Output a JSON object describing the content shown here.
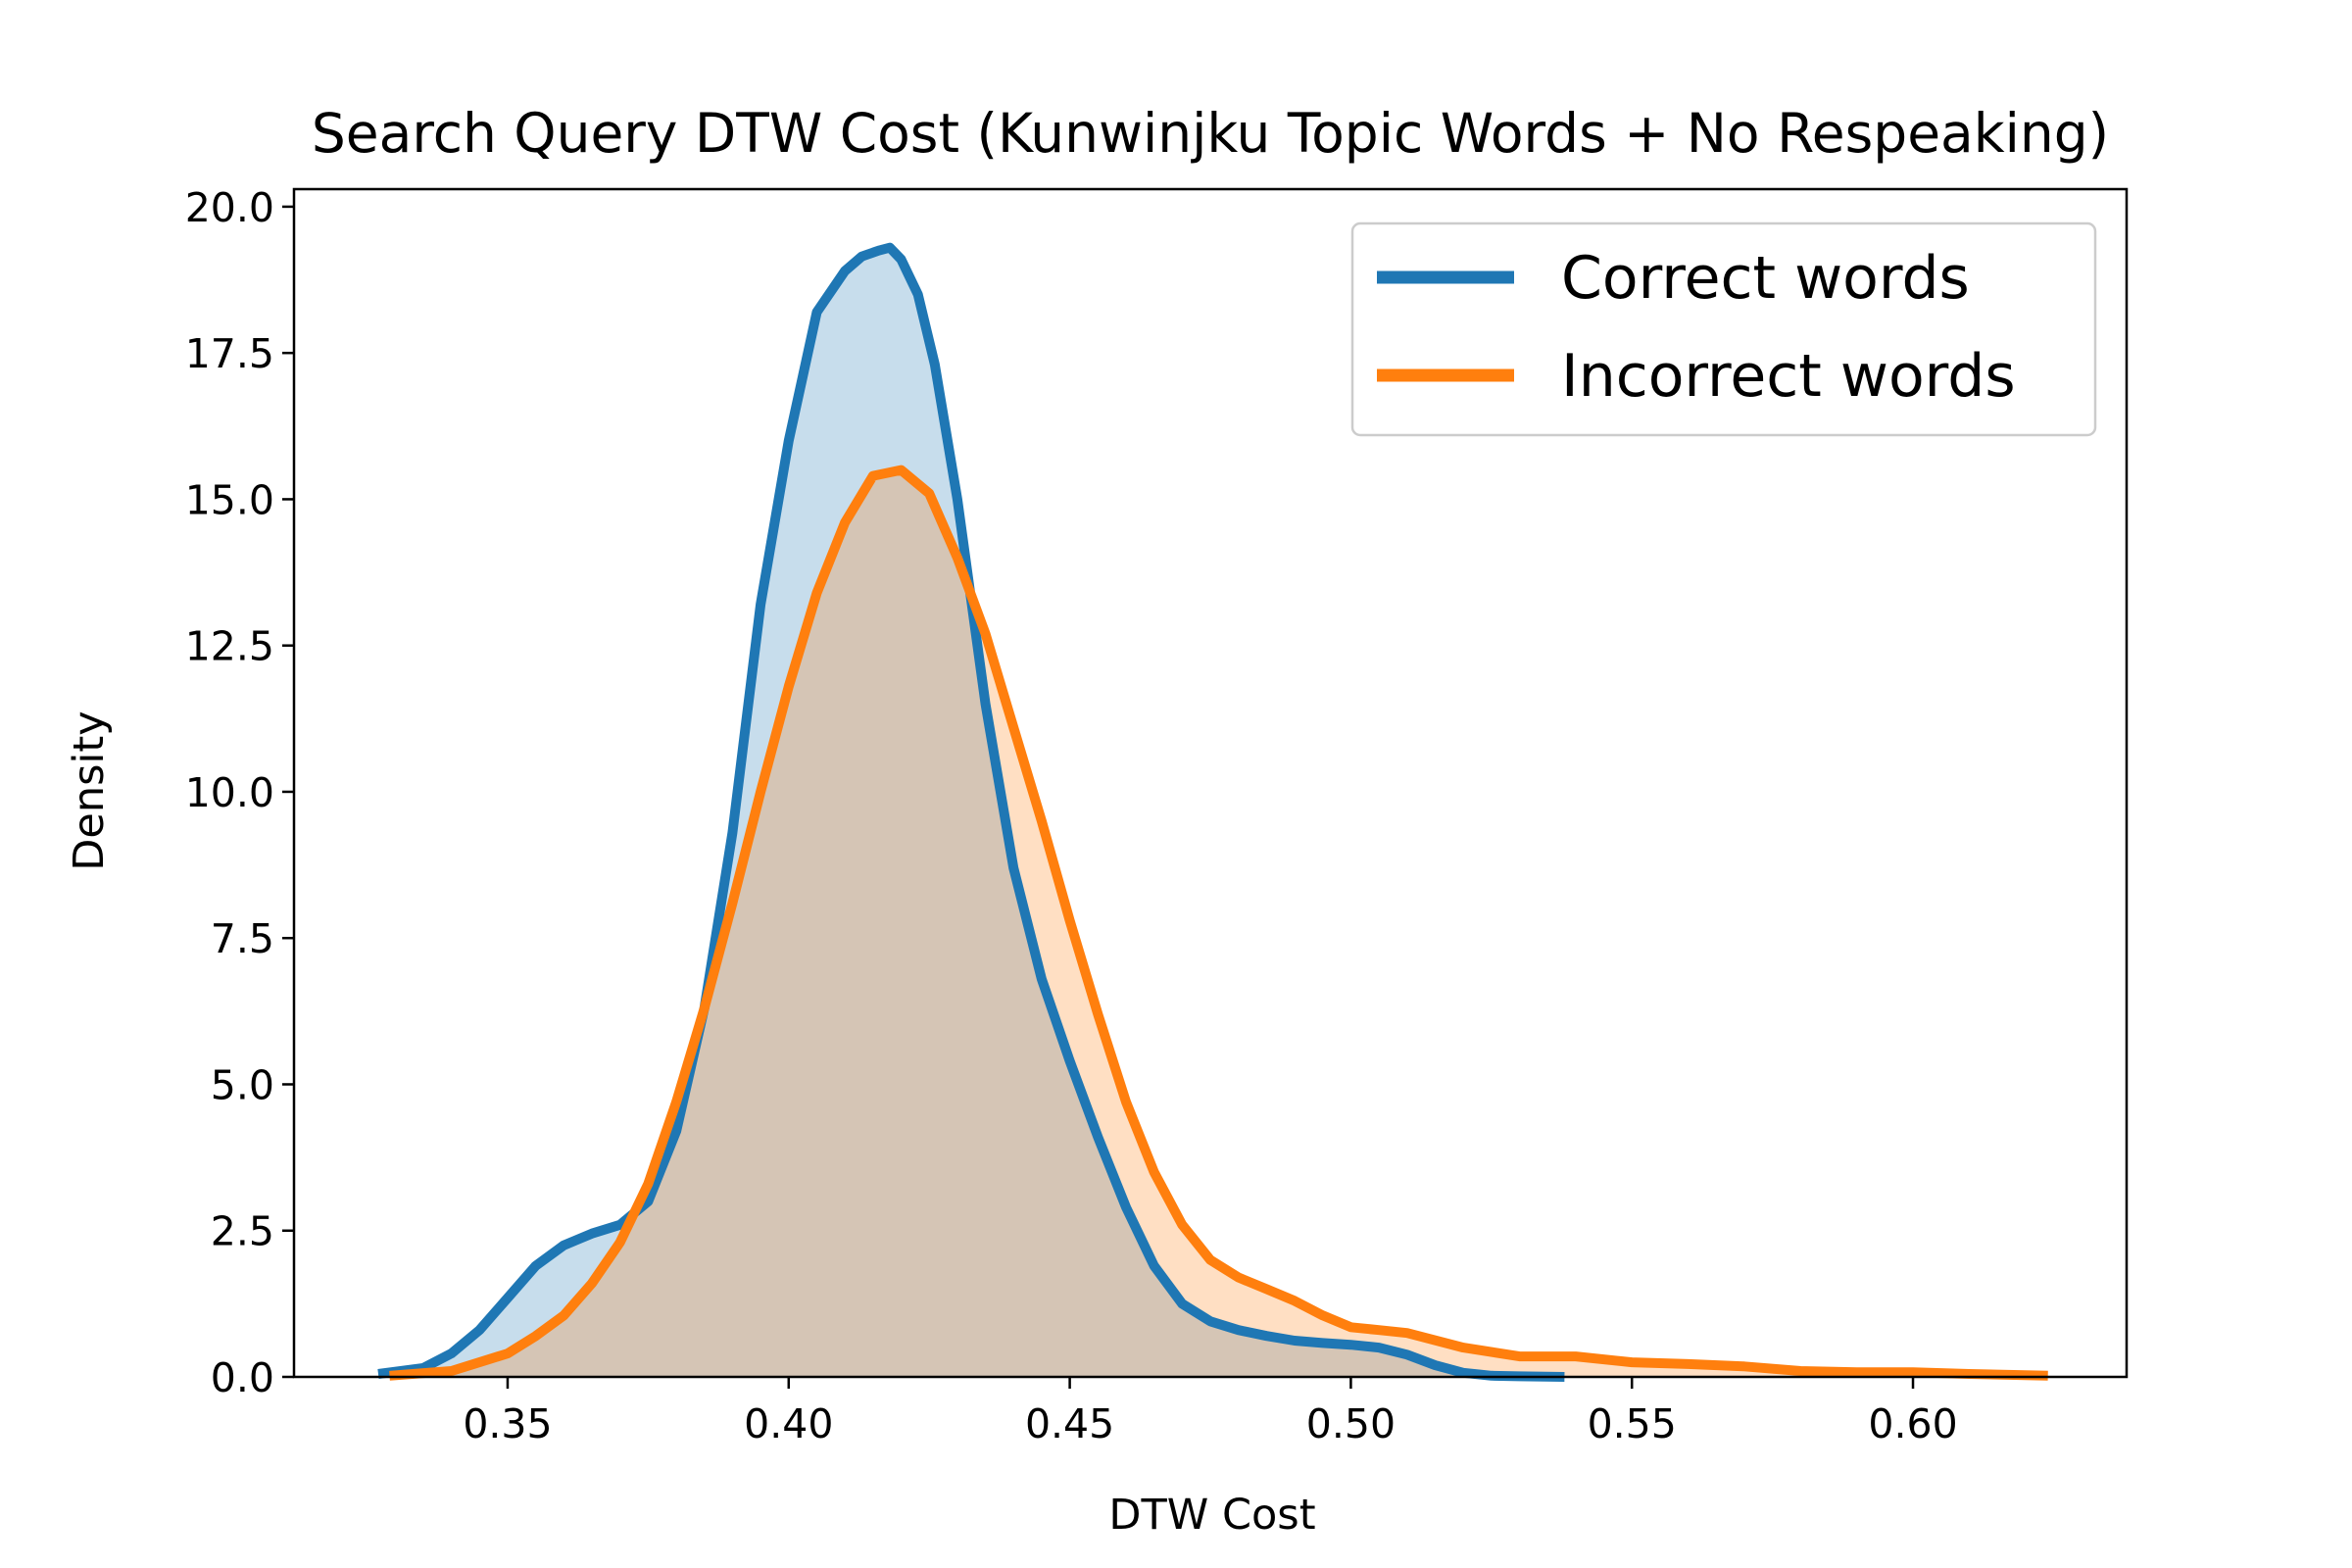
{
  "chart_data": {
    "type": "area",
    "title": "Search Query DTW Cost  (Kunwinjku Topic Words + No Respeaking)",
    "xlabel": "DTW Cost",
    "ylabel": "Density",
    "xlim": [
      0.312,
      0.638
    ],
    "ylim": [
      0,
      20.3
    ],
    "xticks": [
      0.35,
      0.4,
      0.45,
      0.5,
      0.55,
      0.6
    ],
    "xtick_labels": [
      "0.35",
      "0.40",
      "0.45",
      "0.50",
      "0.55",
      "0.60"
    ],
    "yticks": [
      0,
      2.5,
      5,
      7.5,
      10,
      12.5,
      15,
      17.5,
      20
    ],
    "ytick_labels": [
      "0.0",
      "2.5",
      "5.0",
      "7.5",
      "10.0",
      "12.5",
      "15.0",
      "17.5",
      "20.0"
    ],
    "grid": false,
    "legend_position": "top-right",
    "series": [
      {
        "name": "Correct words",
        "color": "#1f77b4",
        "fill": "#c5daed",
        "x": [
          0.327,
          0.335,
          0.34,
          0.345,
          0.35,
          0.355,
          0.36,
          0.365,
          0.37,
          0.375,
          0.38,
          0.385,
          0.39,
          0.395,
          0.4,
          0.405,
          0.41,
          0.413,
          0.416,
          0.418,
          0.42,
          0.423,
          0.426,
          0.43,
          0.435,
          0.44,
          0.445,
          0.45,
          0.455,
          0.46,
          0.465,
          0.47,
          0.475,
          0.48,
          0.485,
          0.49,
          0.495,
          0.5,
          0.505,
          0.51,
          0.515,
          0.52,
          0.525,
          0.53,
          0.538
        ],
        "values": [
          0.05,
          0.15,
          0.4,
          0.8,
          1.35,
          1.9,
          2.25,
          2.45,
          2.6,
          3.0,
          4.2,
          6.3,
          9.3,
          13.2,
          16.0,
          18.2,
          18.9,
          19.15,
          19.25,
          19.3,
          19.1,
          18.5,
          17.3,
          15.0,
          11.5,
          8.7,
          6.8,
          5.4,
          4.1,
          2.9,
          1.9,
          1.25,
          0.95,
          0.8,
          0.7,
          0.62,
          0.58,
          0.55,
          0.5,
          0.38,
          0.2,
          0.07,
          0.02,
          0.01,
          0.0
        ]
      },
      {
        "name": "Incorrect words",
        "color": "#ff7f0e",
        "fill": "#fdd9bb",
        "x": [
          0.329,
          0.34,
          0.35,
          0.355,
          0.36,
          0.365,
          0.37,
          0.375,
          0.38,
          0.385,
          0.39,
          0.395,
          0.4,
          0.405,
          0.41,
          0.415,
          0.42,
          0.425,
          0.43,
          0.435,
          0.44,
          0.445,
          0.45,
          0.455,
          0.46,
          0.465,
          0.47,
          0.475,
          0.48,
          0.485,
          0.49,
          0.495,
          0.5,
          0.505,
          0.51,
          0.52,
          0.53,
          0.54,
          0.55,
          0.56,
          0.57,
          0.58,
          0.59,
          0.6,
          0.61,
          0.624
        ],
        "values": [
          0.02,
          0.1,
          0.4,
          0.7,
          1.05,
          1.6,
          2.3,
          3.3,
          4.7,
          6.3,
          8.1,
          10.0,
          11.8,
          13.4,
          14.6,
          15.4,
          15.5,
          15.1,
          14.0,
          12.7,
          11.1,
          9.5,
          7.8,
          6.2,
          4.7,
          3.5,
          2.6,
          2.0,
          1.7,
          1.5,
          1.3,
          1.05,
          0.85,
          0.8,
          0.75,
          0.5,
          0.35,
          0.35,
          0.25,
          0.22,
          0.18,
          0.1,
          0.08,
          0.08,
          0.05,
          0.02
        ]
      }
    ]
  }
}
